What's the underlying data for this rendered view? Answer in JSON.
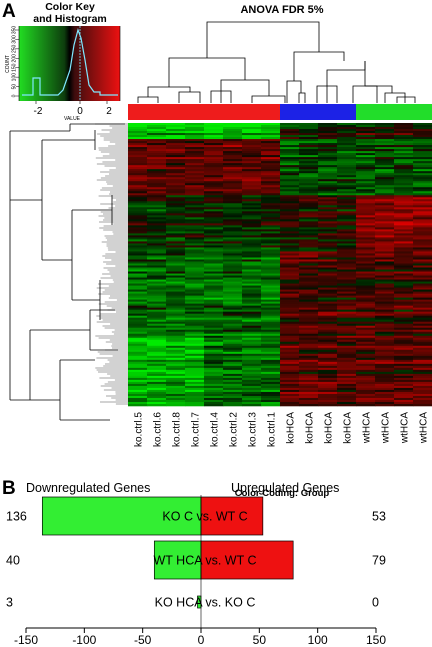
{
  "panel_a": {
    "letter": "A",
    "title": "ANOVA FDR 5%",
    "color_key": {
      "title_line1": "Color Key",
      "title_line2": "and Histogram",
      "xlabel": "VALUE",
      "ylabel": "COUNT",
      "x_ticks": [
        "-2",
        "0",
        "2"
      ],
      "y_ticks": [
        "0",
        "50",
        "100",
        "150",
        "200",
        "250",
        "300",
        "350"
      ]
    },
    "group_bar_colors": [
      "#ee1c1c",
      "#1c22e6",
      "#22dd2a"
    ],
    "group_bar_counts": [
      8,
      4,
      4
    ],
    "samples": [
      "ko.ctrl.5",
      "ko.ctrl.6",
      "ko.ctrl.8",
      "ko.ctrl.7",
      "ko.ctrl.4",
      "ko.ctrl.2",
      "ko.ctrl.3",
      "ko.ctrl.1",
      "koHCA",
      "koHCA",
      "koHCA",
      "koHCA",
      "wtHCA",
      "wtHCA",
      "wtHCA",
      "wtHCA"
    ],
    "color_coding_label": "Color Coding: Group"
  },
  "panel_b": {
    "letter": "B",
    "down_label": "Downregulated Genes",
    "up_label": "Upregulated Genes",
    "down_color": "#33ee33",
    "up_color": "#ee1111"
  },
  "chart_data": {
    "type": "bar",
    "orientation": "horizontal",
    "categories": [
      "KO C vs. WT C",
      "WT HCA vs. WT C",
      "KO HCA vs. KO C"
    ],
    "series": [
      {
        "name": "Downregulated Genes",
        "values": [
          -136,
          -40,
          -3
        ]
      },
      {
        "name": "Upregulated Genes",
        "values": [
          53,
          79,
          0
        ]
      }
    ],
    "down_counts": [
      "136",
      "40",
      "3"
    ],
    "up_counts": [
      "53",
      "79",
      "0"
    ],
    "xlim": [
      -150,
      150
    ],
    "x_ticks": [
      -150,
      -100,
      -50,
      0,
      50,
      100,
      150
    ],
    "x_tick_labels": [
      "-150",
      "-100",
      "-50",
      "0",
      "50",
      "100",
      "150"
    ]
  }
}
